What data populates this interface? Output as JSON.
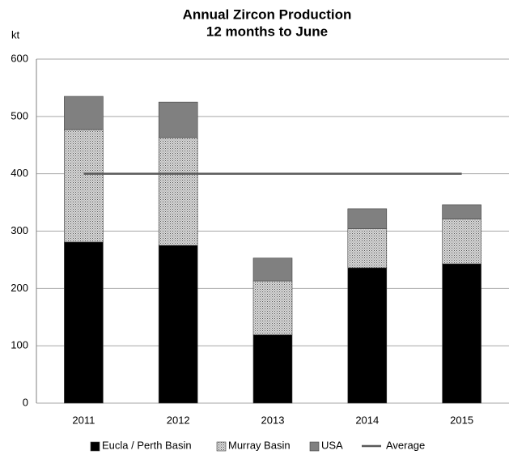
{
  "chart_data": {
    "type": "bar",
    "stacked": true,
    "title": [
      "Annual Zircon Production",
      "12 months to June"
    ],
    "y_axis_label": "kt",
    "categories": [
      "2011",
      "2012",
      "2013",
      "2014",
      "2015"
    ],
    "series": [
      {
        "name": "Eucla / Perth Basin",
        "color": "#000000",
        "values": [
          281,
          275,
          119,
          236,
          243
        ]
      },
      {
        "name": "Murray Basin",
        "color": "#d9d9d9",
        "pattern": "dots",
        "values": [
          196,
          188,
          94,
          68,
          78
        ]
      },
      {
        "name": "USA",
        "color": "#808080",
        "values": [
          58,
          62,
          40,
          35,
          25
        ]
      },
      {
        "name": "Average",
        "type": "line",
        "color": "#595959",
        "values": [
          400,
          400,
          400,
          400,
          400
        ]
      }
    ],
    "ylim": [
      0,
      600
    ],
    "yticks": [
      0,
      100,
      200,
      300,
      400,
      500,
      600
    ],
    "grid": true,
    "legend": "bottom"
  }
}
